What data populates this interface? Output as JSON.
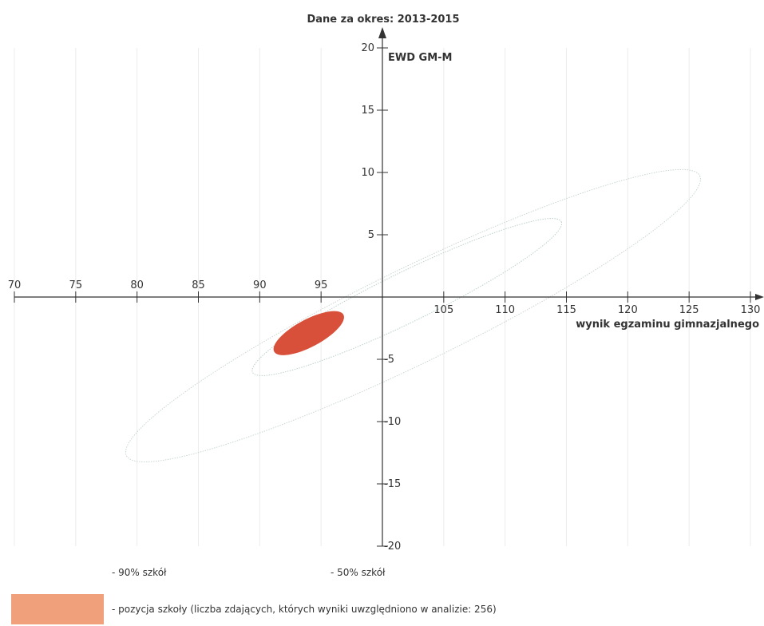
{
  "chart_data": {
    "type": "scatter",
    "title": "Dane za okres: 2013-2015",
    "xlabel": "wynik egzaminu gimnazjalnego",
    "ylabel": "EWD GM-M",
    "xlim": [
      70,
      130
    ],
    "ylim": [
      -20,
      20
    ],
    "x_origin": 100,
    "xticks": [
      70,
      75,
      80,
      85,
      90,
      95,
      105,
      110,
      115,
      120,
      125,
      130
    ],
    "yticks": [
      20,
      15,
      10,
      5,
      -5,
      -10,
      -15,
      -20
    ],
    "grid": true,
    "regions": [
      {
        "name": "90% szkół",
        "center": [
          102.5,
          -1.5
        ],
        "semi_major": 26.0,
        "semi_minor": 3.8,
        "angle_deg": 26,
        "color": "#c9d6cf"
      },
      {
        "name": "50% szkół",
        "center": [
          102.0,
          0.0
        ],
        "semi_major": 14.0,
        "semi_minor": 2.0,
        "angle_deg": 26,
        "color": "#bcd1c8"
      }
    ],
    "school_position": {
      "x": 94.0,
      "y": -2.9,
      "semi_major": 3.2,
      "semi_minor": 1.1,
      "angle_deg": 28,
      "color": "#d9503a"
    }
  },
  "legend": {
    "p90": "- 90% szkół",
    "p50": "- 50% szkół",
    "school": "- pozycja szkoły (liczba zdających, których wyniki uwzględniono w analizie: 256)",
    "school_color": "#f0a07a"
  }
}
